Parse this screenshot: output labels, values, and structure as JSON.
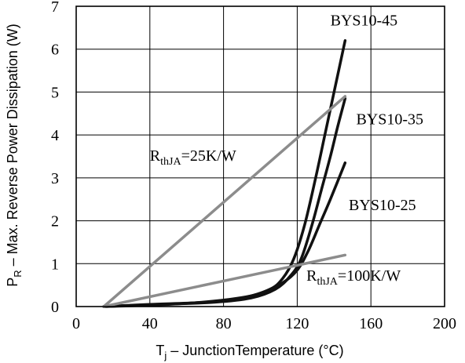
{
  "chart_data": {
    "type": "line",
    "xlabel": {
      "main": "T",
      "sub": "j",
      "rest": " – JunctionTemperature (°C)"
    },
    "ylabel": {
      "main": "P",
      "sub": "R",
      "rest": " – Max. Reverse Power Dissipation (W)"
    },
    "xlim": [
      0,
      200
    ],
    "ylim": [
      0,
      7
    ],
    "xticks": [
      0,
      40,
      80,
      120,
      160,
      200
    ],
    "yticks": [
      0,
      1,
      2,
      3,
      4,
      5,
      6,
      7
    ],
    "grid": true,
    "series": [
      {
        "name": "BYS10-45",
        "color": "#111111",
        "x": [
          15,
          40,
          70,
          90,
          105,
          112,
          118,
          124,
          130,
          135,
          140,
          146
        ],
        "y": [
          0,
          0.05,
          0.1,
          0.2,
          0.4,
          0.65,
          1.1,
          1.9,
          3.0,
          4.0,
          5.0,
          6.2
        ]
      },
      {
        "name": "BYS10-35",
        "color": "#111111",
        "x": [
          15,
          45,
          75,
          95,
          108,
          116,
          122,
          128,
          133,
          138,
          142,
          146
        ],
        "y": [
          0,
          0.05,
          0.1,
          0.2,
          0.4,
          0.7,
          1.1,
          1.9,
          2.7,
          3.5,
          4.2,
          4.85
        ]
      },
      {
        "name": "BYS10-25",
        "color": "#111111",
        "x": [
          15,
          50,
          80,
          100,
          112,
          120,
          126,
          132,
          138,
          146
        ],
        "y": [
          0,
          0.05,
          0.15,
          0.3,
          0.55,
          0.85,
          1.3,
          1.9,
          2.5,
          3.35
        ]
      },
      {
        "name": "RthJA=25K/W",
        "color": "#8c8c8c",
        "x": [
          15,
          146
        ],
        "y": [
          0,
          4.9
        ]
      },
      {
        "name": "RthJA=100K/W",
        "color": "#8c8c8c",
        "x": [
          15,
          146
        ],
        "y": [
          0,
          1.2
        ]
      }
    ],
    "annotations": [
      {
        "id": "bys45",
        "parts": [
          {
            "t": "BYS10-45"
          }
        ],
        "at": [
          138,
          6.55
        ]
      },
      {
        "id": "bys35",
        "parts": [
          {
            "t": "BYS10-35"
          }
        ],
        "at": [
          152,
          4.25
        ]
      },
      {
        "id": "bys25",
        "parts": [
          {
            "t": "BYS10-25"
          }
        ],
        "at": [
          148,
          2.25
        ]
      },
      {
        "id": "rth25",
        "parts": [
          {
            "t": "R"
          },
          {
            "t": "thJA",
            "sub": true
          },
          {
            "t": "=25K/W"
          }
        ],
        "at": [
          40,
          3.4
        ]
      },
      {
        "id": "rth100",
        "parts": [
          {
            "t": "R"
          },
          {
            "t": "thJA",
            "sub": true
          },
          {
            "t": "=100K/W"
          }
        ],
        "at": [
          125,
          0.6
        ]
      }
    ]
  }
}
